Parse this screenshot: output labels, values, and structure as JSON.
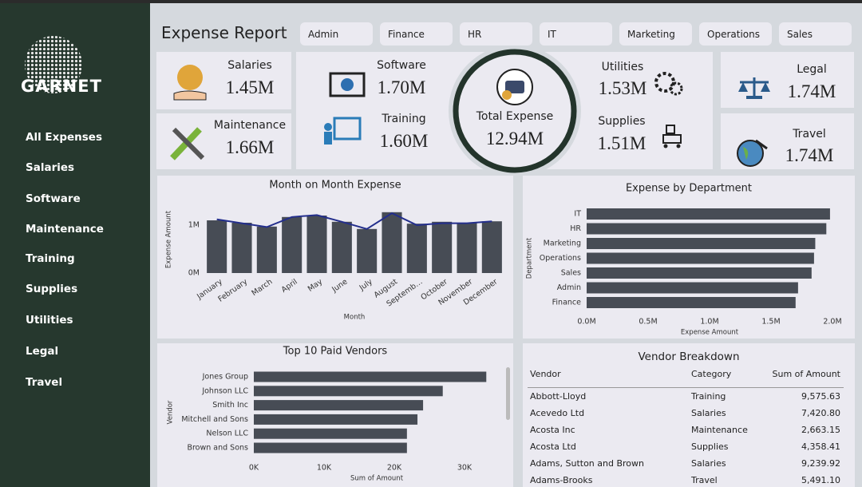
{
  "sidebar": {
    "logo": "GARNET",
    "nav": [
      "All Expenses",
      "Salaries",
      "Software",
      "Maintenance",
      "Training",
      "Supplies",
      "Utilities",
      "Legal",
      "Travel"
    ]
  },
  "header": {
    "title": "Expense Report",
    "filters": [
      "Admin",
      "Finance",
      "HR",
      "IT",
      "Marketing",
      "Operations",
      "Sales"
    ]
  },
  "kpis": [
    {
      "label": "Salaries",
      "value": "1.45M"
    },
    {
      "label": "Maintenance",
      "value": "1.66M"
    },
    {
      "label": "Software",
      "value": "1.70M"
    },
    {
      "label": "Training",
      "value": "1.60M"
    },
    {
      "label": "Total Expense",
      "value": "12.94M"
    },
    {
      "label": "Utilities",
      "value": "1.53M"
    },
    {
      "label": "Supplies",
      "value": "1.51M"
    },
    {
      "label": "Legal",
      "value": "1.74M"
    },
    {
      "label": "Travel",
      "value": "1.74M"
    }
  ],
  "chart_data": [
    {
      "type": "bar",
      "title": "Month on Month Expense",
      "x_label": "Month",
      "y_label": "Expense Amount",
      "categories": [
        "January",
        "February",
        "March",
        "April",
        "May",
        "June",
        "July",
        "August",
        "Septemb…",
        "October",
        "November",
        "December"
      ],
      "series": [
        {
          "type": "bar",
          "color": "#474c55",
          "values": [
            1100000,
            1050000,
            970000,
            1170000,
            1200000,
            1070000,
            920000,
            1270000,
            1030000,
            1070000,
            1050000,
            1080000
          ]
        },
        {
          "type": "line",
          "color": "#232e8c",
          "values": [
            1120000,
            1040000,
            960000,
            1170000,
            1210000,
            1070000,
            920000,
            1250000,
            1000000,
            1040000,
            1040000,
            1080000
          ]
        }
      ],
      "ylim": [
        0,
        1400000
      ],
      "yticks": [
        {
          "value": 0,
          "label": "0M"
        },
        {
          "value": 1000000,
          "label": "1M"
        }
      ]
    },
    {
      "type": "hbar",
      "title": "Expense by Department",
      "x_label": "Expense Amount",
      "y_label": "Department",
      "categories": [
        "IT",
        "HR",
        "Marketing",
        "Operations",
        "Sales",
        "Admin",
        "Finance"
      ],
      "values": [
        1980000,
        1950000,
        1860000,
        1850000,
        1830000,
        1720000,
        1700000
      ],
      "color": "#474c55",
      "xlim": [
        0,
        2000000
      ],
      "xticks": [
        {
          "value": 0,
          "label": "0.0M"
        },
        {
          "value": 500000,
          "label": "0.5M"
        },
        {
          "value": 1000000,
          "label": "1.0M"
        },
        {
          "value": 1500000,
          "label": "1.5M"
        },
        {
          "value": 2000000,
          "label": "2.0M"
        }
      ]
    },
    {
      "type": "hbar",
      "title": "Top 10 Paid Vendors",
      "x_label": "Sum of Amount",
      "y_label": "Vendor",
      "categories": [
        "Jones Group",
        "Johnson LLC",
        "Smith Inc",
        "Mitchell and Sons",
        "Nelson LLC",
        "Brown and Sons"
      ],
      "values": [
        33100,
        26900,
        24100,
        23300,
        21800,
        21800
      ],
      "color": "#474c55",
      "xlim": [
        0,
        35000
      ],
      "xticks": [
        {
          "value": 0,
          "label": "0K"
        },
        {
          "value": 10000,
          "label": "10K"
        },
        {
          "value": 20000,
          "label": "20K"
        },
        {
          "value": 30000,
          "label": "30K"
        }
      ]
    }
  ],
  "table": {
    "title": "Vendor Breakdown",
    "columns": [
      "Vendor",
      "Category",
      "Sum of Amount"
    ],
    "rows": [
      [
        "Abbott-Lloyd",
        "Training",
        "9,575.63"
      ],
      [
        "Acevedo Ltd",
        "Salaries",
        "7,420.80"
      ],
      [
        "Acosta Inc",
        "Maintenance",
        "2,663.15"
      ],
      [
        "Acosta Ltd",
        "Supplies",
        "4,358.41"
      ],
      [
        "Adams, Sutton and Brown",
        "Salaries",
        "9,239.92"
      ],
      [
        "Adams-Brooks",
        "Travel",
        "5,491.10"
      ]
    ]
  }
}
